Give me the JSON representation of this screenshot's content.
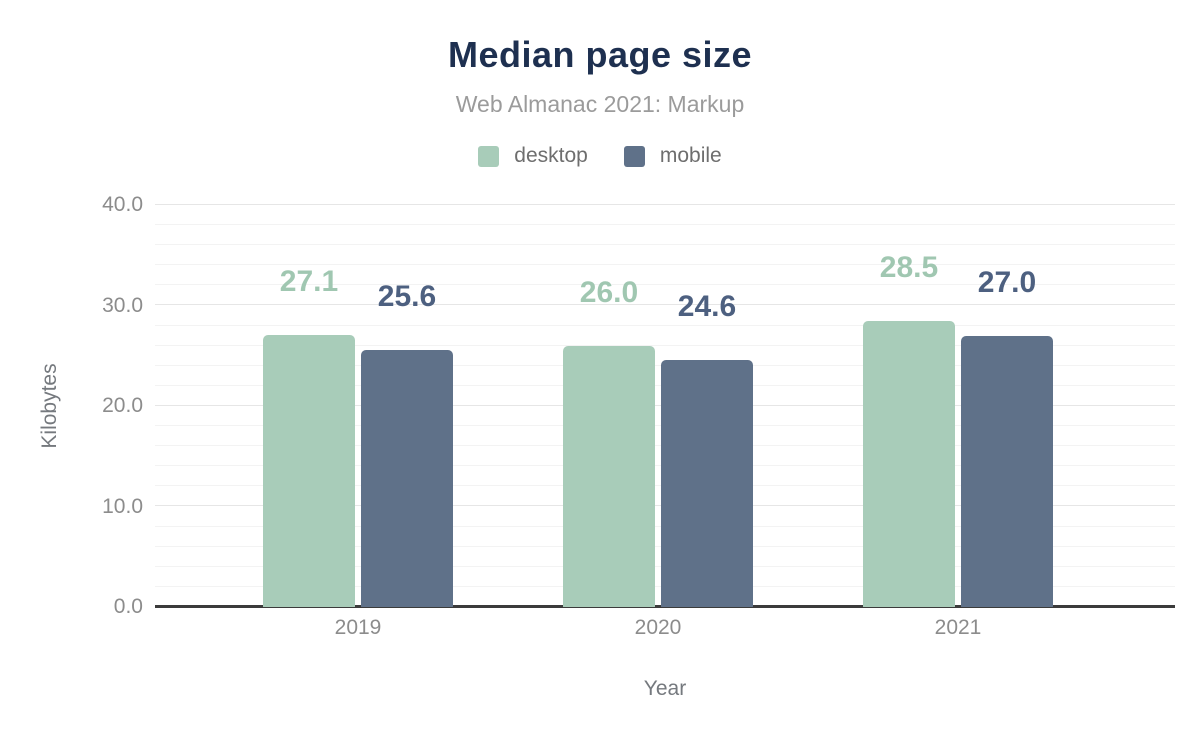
{
  "chart_data": {
    "type": "bar",
    "title": "Median page size",
    "subtitle": "Web Almanac 2021: Markup",
    "categories": [
      "2019",
      "2020",
      "2021"
    ],
    "series": [
      {
        "name": "desktop",
        "color": "#a8ccb9",
        "annotation_color": "#a0c7b1",
        "values": [
          27.1,
          26.0,
          28.5
        ],
        "value_labels": [
          "27.1",
          "26.0",
          "28.5"
        ]
      },
      {
        "name": "mobile",
        "color": "#5f7189",
        "annotation_color": "#4d6080",
        "values": [
          25.6,
          24.6,
          27.0
        ],
        "value_labels": [
          "25.6",
          "24.6",
          "27.0"
        ]
      }
    ],
    "xlabel": "Year",
    "ylabel": "Kilobytes",
    "ylim": [
      0,
      40
    ],
    "yticks": [
      {
        "value": 0,
        "label": "0.0"
      },
      {
        "value": 10,
        "label": "10.0"
      },
      {
        "value": 20,
        "label": "20.0"
      },
      {
        "value": 30,
        "label": "30.0"
      },
      {
        "value": 40,
        "label": "40.0"
      }
    ],
    "grid": {
      "major_step": 10,
      "minor_step": 2,
      "orientation": "horizontal"
    },
    "legend_position": "top",
    "colors": {
      "title": "#1e3050",
      "subtitle": "#9b9b9b",
      "axis_line": "#3b3b3b",
      "tick_text": "#8c8c8c",
      "axis_title_text": "#75797e",
      "major_grid": "#e6e6e6",
      "minor_grid": "#f3f3f3",
      "background": "#ffffff"
    }
  }
}
